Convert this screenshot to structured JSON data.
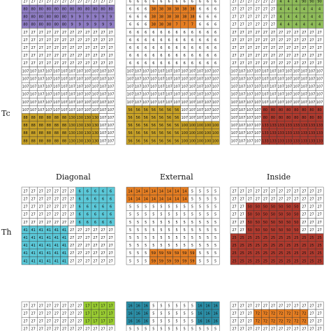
{
  "row_labels": [
    "Tc",
    "Th"
  ],
  "column_labels": [
    "Diagonal",
    "External",
    "Inside"
  ],
  "palette": {
    "base": "#ffffff",
    "purple": "#8e7cc3",
    "orange": "#e67e22",
    "green": "#8fbc5a",
    "gold": "#c9a227",
    "crimson": "#b03a2e",
    "cyan": "#5bc8d8",
    "teal": "#2a8fa8",
    "lime": "#9acd32"
  },
  "grids": [
    {
      "id": "row0-col0",
      "base_value": "27",
      "regions": [
        {
          "rows": [
            1,
            4
          ],
          "cols": [
            0,
            12
          ],
          "value": "80",
          "color": "purple"
        },
        {
          "rows": [
            2,
            4
          ],
          "cols": [
            6,
            12
          ],
          "value": "9",
          "color": "purple"
        }
      ]
    },
    {
      "id": "row0-col1",
      "base_value": "6",
      "regions": [
        {
          "rows": [
            1,
            4
          ],
          "cols": [
            3,
            9
          ],
          "value": "38",
          "color": "orange"
        },
        {
          "rows": [
            3,
            4
          ],
          "cols": [
            6,
            9
          ],
          "value": "7",
          "color": "orange"
        }
      ]
    },
    {
      "id": "row0-col2",
      "base_value": "27",
      "regions": [
        {
          "rows": [
            0,
            4
          ],
          "cols": [
            6,
            12
          ],
          "value": "4",
          "color": "green"
        },
        {
          "rows": [
            0,
            1
          ],
          "cols": [
            9,
            12
          ],
          "value": "90",
          "color": "green"
        }
      ]
    },
    {
      "id": "row1-col0",
      "base_value": "107",
      "regions": [
        {
          "rows": [
            6,
            10
          ],
          "cols": [
            0,
            10
          ],
          "value": "88",
          "color": "gold"
        },
        {
          "rows": [
            6,
            10
          ],
          "cols": [
            6,
            10
          ],
          "value": "130",
          "color": "gold"
        }
      ]
    },
    {
      "id": "row1-col1",
      "base_value": "107",
      "regions": [
        {
          "rows": [
            5,
            10
          ],
          "cols": [
            0,
            7
          ],
          "value": "56",
          "color": "gold"
        },
        {
          "rows": [
            7,
            10
          ],
          "cols": [
            7,
            12
          ],
          "value": "100",
          "color": "gold"
        }
      ]
    },
    {
      "id": "row1-col2",
      "base_value": "107",
      "regions": [
        {
          "rows": [
            5,
            10
          ],
          "cols": [
            4,
            12
          ],
          "value": "80",
          "color": "crimson"
        },
        {
          "rows": [
            7,
            10
          ],
          "cols": [
            4,
            12
          ],
          "value": "133",
          "color": "crimson"
        }
      ]
    },
    {
      "id": "row2-col0",
      "base_value": "27",
      "regions": [
        {
          "rows": [
            0,
            5
          ],
          "cols": [
            7,
            12
          ],
          "value": "6",
          "color": "cyan"
        },
        {
          "rows": [
            5,
            10
          ],
          "cols": [
            0,
            6
          ],
          "value": "41",
          "color": "cyan"
        }
      ]
    },
    {
      "id": "row2-col1",
      "base_value": "5",
      "regions": [
        {
          "rows": [
            0,
            2
          ],
          "cols": [
            0,
            8
          ],
          "value": "14",
          "color": "orange"
        },
        {
          "rows": [
            8,
            10
          ],
          "cols": [
            3,
            9
          ],
          "value": "59",
          "color": "orange"
        }
      ]
    },
    {
      "id": "row2-col2",
      "base_value": "27",
      "regions": [
        {
          "rows": [
            2,
            7
          ],
          "cols": [
            2,
            9
          ],
          "value": "50",
          "color": "crimson"
        },
        {
          "rows": [
            6,
            10
          ],
          "cols": [
            0,
            12
          ],
          "value": "25",
          "color": "crimson"
        }
      ]
    },
    {
      "id": "row3-col0",
      "base_value": "27",
      "regions": [
        {
          "rows": [
            0,
            3
          ],
          "cols": [
            8,
            12
          ],
          "value": "17",
          "color": "lime"
        }
      ]
    },
    {
      "id": "row3-col1",
      "base_value": "5",
      "regions": [
        {
          "rows": [
            0,
            3
          ],
          "cols": [
            0,
            3
          ],
          "value": "16",
          "color": "teal"
        },
        {
          "rows": [
            0,
            3
          ],
          "cols": [
            9,
            12
          ],
          "value": "16",
          "color": "teal"
        }
      ]
    },
    {
      "id": "row3-col2",
      "base_value": "27",
      "regions": [
        {
          "rows": [
            1,
            3
          ],
          "cols": [
            3,
            10
          ],
          "value": "72",
          "color": "orange"
        }
      ]
    }
  ]
}
